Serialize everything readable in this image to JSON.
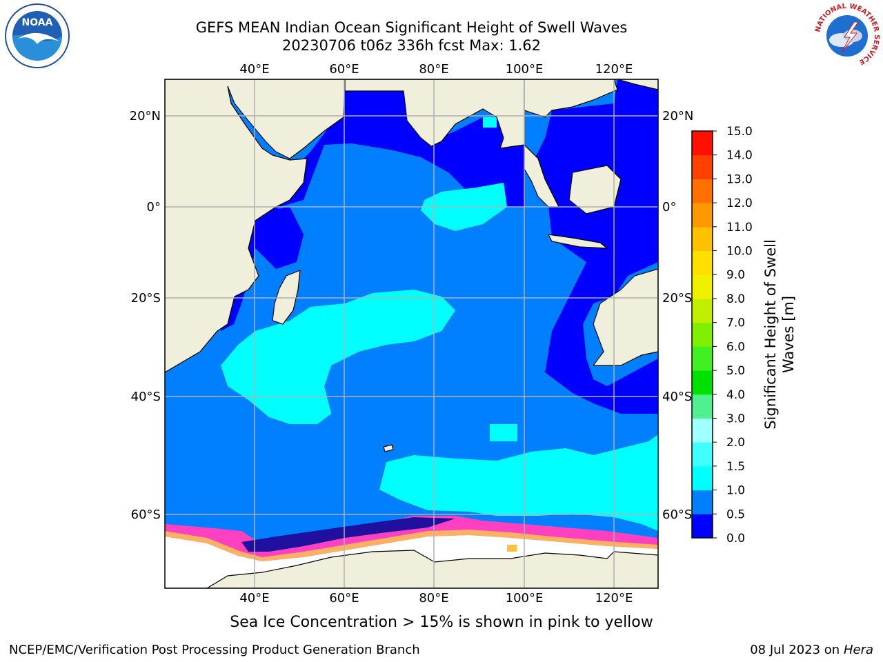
{
  "header": {
    "title_line1": "GEFS MEAN Indian Ocean Significant Height of Swell Waves",
    "title_line2": "20230706 t06z 336h fcst   Max: 1.62"
  },
  "logos": {
    "left": "NOAA",
    "right": "NATIONAL WEATHER SERVICE"
  },
  "map": {
    "lon_ticks": [
      "40°E",
      "60°E",
      "80°E",
      "100°E",
      "120°E"
    ],
    "lat_ticks_left": [
      "20°N",
      "0°",
      "20°S",
      "40°S",
      "60°S"
    ],
    "lat_ticks_right": [
      "20°N",
      "0°",
      "20°S",
      "40°S",
      "60°S"
    ]
  },
  "colorbar": {
    "label_line1": "Significant Height of Swell",
    "label_line2": "Waves [m]",
    "ticks": [
      "0.0",
      "0.5",
      "1.0",
      "1.5",
      "2.0",
      "3.0",
      "4.0",
      "5.0",
      "6.0",
      "7.0",
      "8.0",
      "9.0",
      "10.0",
      "11.0",
      "12.0",
      "13.0",
      "14.0",
      "15.0"
    ],
    "colors": [
      "#0000ff",
      "#0080ff",
      "#00ffff",
      "#40ffff",
      "#a0ffff",
      "#50f090",
      "#00e000",
      "#40f020",
      "#80f000",
      "#c0f000",
      "#f0f000",
      "#ffe000",
      "#ffc000",
      "#ff9800",
      "#ff7000",
      "#ff4000",
      "#ff1000"
    ]
  },
  "caption": "Sea Ice Concentration > 15% is shown in pink to yellow",
  "footer": {
    "left": "NCEP/EMC/Verification Post Processing Product Generation Branch",
    "right_date": "08 Jul 2023 on ",
    "right_host": "Hera"
  }
}
